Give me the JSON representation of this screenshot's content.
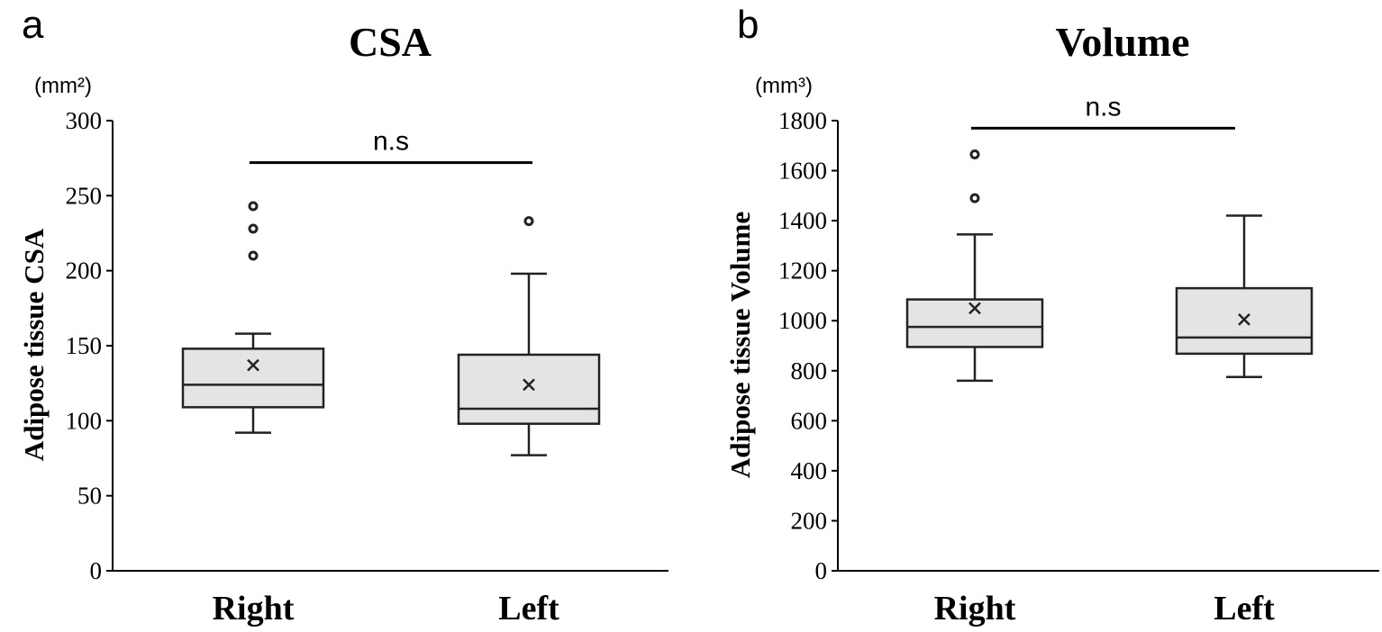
{
  "chart_data": [
    {
      "type": "box",
      "panel": "a",
      "title": "CSA",
      "unit_label": "(mm²)",
      "ylabel": "Adipose tissue CSA",
      "ylim": [
        0,
        300
      ],
      "yticks": [
        0,
        50,
        100,
        150,
        200,
        250,
        300
      ],
      "categories": [
        "Right",
        "Left"
      ],
      "boxes": [
        {
          "name": "Right",
          "whisker_low": 92,
          "q1": 109,
          "median": 124,
          "q3": 148,
          "whisker_high": 158,
          "mean": 137,
          "outliers": [
            210,
            228,
            243
          ]
        },
        {
          "name": "Left",
          "whisker_low": 77,
          "q1": 98,
          "median": 108,
          "q3": 144,
          "whisker_high": 198,
          "mean": 124,
          "outliers": [
            233
          ]
        }
      ],
      "significance": {
        "label": "n.s",
        "value": 272
      }
    },
    {
      "type": "box",
      "panel": "b",
      "title": "Volume",
      "unit_label": "(mm³)",
      "ylabel": "Adipose tissue Volume",
      "ylim": [
        0,
        1800
      ],
      "yticks": [
        0,
        200,
        400,
        600,
        800,
        1000,
        1200,
        1400,
        1600,
        1800
      ],
      "categories": [
        "Right",
        "Left"
      ],
      "boxes": [
        {
          "name": "Right",
          "whisker_low": 760,
          "q1": 895,
          "median": 975,
          "q3": 1085,
          "whisker_high": 1345,
          "mean": 1050,
          "outliers": [
            1490,
            1665
          ]
        },
        {
          "name": "Left",
          "whisker_low": 775,
          "q1": 868,
          "median": 933,
          "q3": 1130,
          "whisker_high": 1420,
          "mean": 1005,
          "outliers": []
        }
      ],
      "significance": {
        "label": "n.s",
        "value": 1770
      }
    }
  ]
}
